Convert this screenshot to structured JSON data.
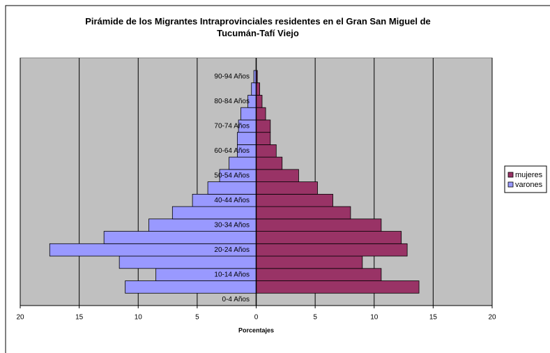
{
  "chart_data": {
    "type": "bar",
    "orientation": "horizontal",
    "stacking": "pyramid",
    "title": "Pirámide de los Migrantes Intraprovinciales residentes en el Gran San Miguel de Tucumán-Tafí Viejo",
    "x_label": "Porcentajes",
    "categories": [
      "0-4 Años",
      null,
      "10-14 Años",
      null,
      "20-24 Años",
      null,
      "30-34 Años",
      null,
      "40-44 Años",
      null,
      "50-54 Años",
      null,
      "60-64 Años",
      null,
      "70-74 Años",
      null,
      "80-84 Años",
      null,
      "90-94 Años"
    ],
    "series": [
      {
        "name": "mujeres",
        "color": "#993366",
        "values": [
          0,
          13.8,
          10.6,
          9.0,
          12.8,
          12.3,
          10.6,
          8.0,
          6.5,
          5.2,
          3.6,
          2.2,
          1.7,
          1.2,
          1.2,
          0.8,
          0.5,
          0.3,
          0.1
        ]
      },
      {
        "name": "varones",
        "color": "#9999FF",
        "values": [
          0,
          -11.1,
          -8.5,
          -11.6,
          -17.5,
          -12.9,
          -9.1,
          -7.1,
          -5.4,
          -4.1,
          -3.1,
          -2.3,
          -1.6,
          -1.6,
          -1.5,
          -1.3,
          -0.7,
          -0.4,
          -0.2
        ]
      }
    ],
    "xlim": [
      -20,
      20
    ],
    "xticks": [
      {
        "value": -20,
        "label": "20"
      },
      {
        "value": -15,
        "label": "15"
      },
      {
        "value": -10,
        "label": "10"
      },
      {
        "value": -5,
        "label": "5"
      },
      0,
      5,
      10,
      15,
      20
    ],
    "grid": true,
    "legend": "right",
    "plot_background": "#c0c0c0"
  }
}
